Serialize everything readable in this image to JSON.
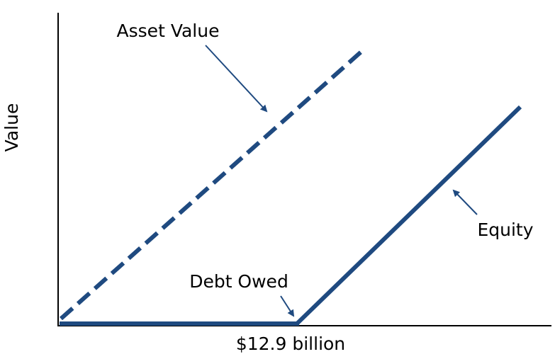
{
  "y_axis_label": "Value",
  "x_axis_tick": "$12.9 billion",
  "labels": {
    "asset_value": "Asset Value",
    "debt_owed": "Debt Owed",
    "equity": "Equity"
  },
  "colors": {
    "line": "#1f4a80",
    "axis": "#000000",
    "background": "#ffffff"
  }
}
